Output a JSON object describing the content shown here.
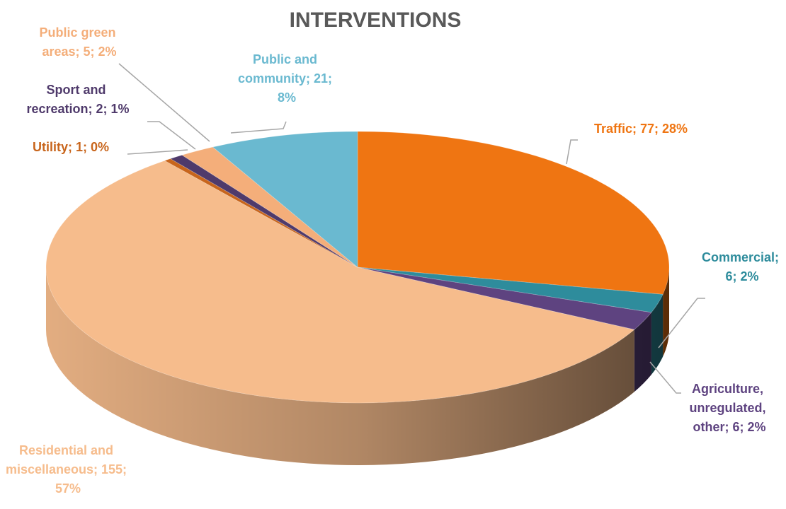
{
  "chart_data": {
    "type": "pie",
    "title": "INTERVENTIONS",
    "values": [
      77,
      6,
      6,
      155,
      1,
      2,
      5,
      21
    ],
    "value_labels": [
      "Traffic; 77; 28%",
      "Commercial; 6; 2%",
      "Agriculture, unregulated, other; 6; 2%",
      "Residential and miscellaneous; 155; 57%",
      "Utility; 1; 0%",
      "Sport and recreation; 2; 1%",
      "Public green areas; 5; 2%",
      "Public and community; 21; 8%"
    ],
    "colors": [
      "#ef7512",
      "#2e8c9c",
      "#5e4380",
      "#f6bc8c",
      "#c8651c",
      "#4f3a6b",
      "#f4ae7a",
      "#6ab9d0"
    ]
  }
}
